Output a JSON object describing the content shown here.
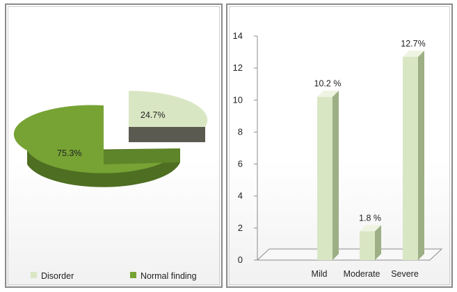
{
  "chart_data": [
    {
      "type": "pie",
      "categories": [
        "Disorder",
        "Normal finding"
      ],
      "values": [
        24.7,
        75.3
      ],
      "data_labels": [
        "24.7%",
        "75.3%"
      ],
      "legend": {
        "position": "bottom",
        "items": [
          {
            "label": "Disorder",
            "color": "#d9e6c3"
          },
          {
            "label": "Normal finding",
            "color": "#76a334"
          }
        ]
      },
      "colors": {
        "Disorder": "#d9e6c3",
        "Normal finding": "#76a334"
      },
      "exploded_slice": "Disorder",
      "style": "3d"
    },
    {
      "type": "bar",
      "categories": [
        "Mild",
        "Moderate",
        "Severe"
      ],
      "values": [
        10.2,
        1.8,
        12.7
      ],
      "data_labels": [
        "10.2 %",
        "1.8 %",
        "12.7%"
      ],
      "ylim": [
        0,
        14
      ],
      "yticks": [
        "0",
        "2",
        "4",
        "6",
        "8",
        "10",
        "12",
        "14"
      ],
      "bar_color": "#d9e6c3",
      "style": "3d",
      "grid": false
    }
  ]
}
